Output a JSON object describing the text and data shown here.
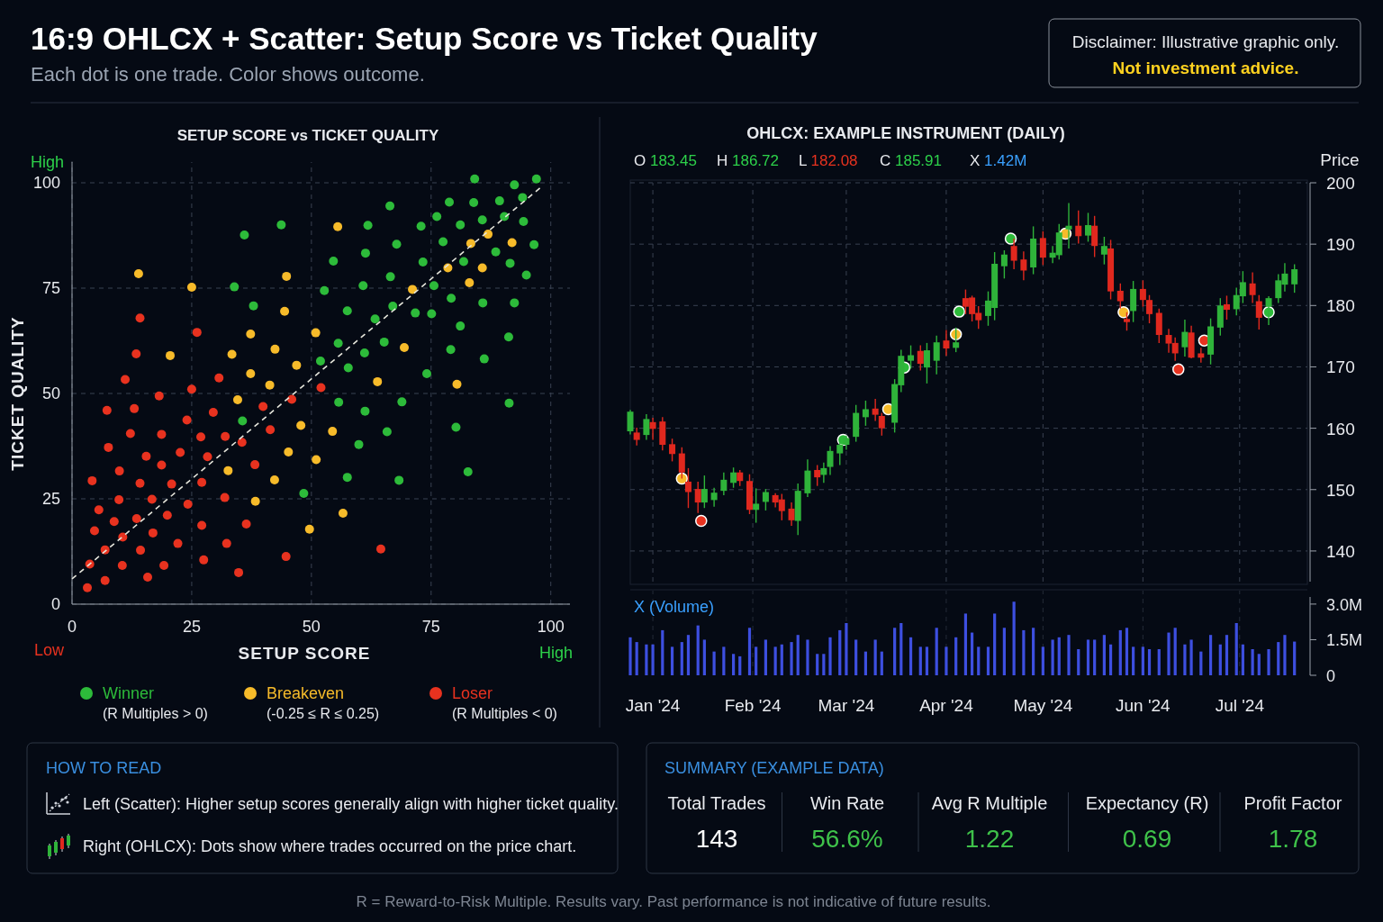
{
  "chart_data": [
    {
      "type": "other",
      "title": "16:9 OHLCX + Scatter: Setup Score vs Ticket Quality",
      "subtitle": "Each dot is one trade. Color shows outcome.",
      "annotations": [
        "Disclaimer: Illustrative graphic only.",
        "Not investment advice.",
        "R = Reward-to-Risk Multiple. Results vary. Past performance is not indicative of future results."
      ]
    },
    {
      "type": "scatter",
      "title": "SETUP SCORE vs TICKET QUALITY",
      "xlabel": "SETUP SCORE",
      "ylabel": "TICKET QUALITY",
      "xlim": [
        0,
        104
      ],
      "ylim": [
        0,
        105
      ],
      "xticks": [
        0,
        25,
        50,
        75,
        100
      ],
      "yticks": [
        0,
        25,
        50,
        75,
        100
      ],
      "grid": true,
      "legend": "bottom",
      "marker": "circle",
      "line_style": "dashed",
      "annotations": [
        "High",
        "Low",
        "High",
        "(R Multiples > 0)",
        "(-0.25 ≤ R ≤ 0.25)",
        "(R Multiples < 0)"
      ],
      "series": [
        {
          "name": "Winner",
          "color": "#2dbb3a",
          "x": [
            84.1,
            92.4,
            97.0,
            66.4,
            78.8,
            83.9,
            89.3,
            94.1,
            90.3,
            85.7,
            94.3,
            81.1,
            76.2,
            72.9,
            43.7,
            61.8,
            36.0,
            67.8,
            77.5,
            88.5,
            96.5,
            61.3,
            54.6,
            73.3,
            81.8,
            91.5,
            66.5,
            94.9,
            33.9,
            52.7,
            60.8,
            75.6,
            79.2,
            85.8,
            92.4,
            37.9,
            57.5,
            67.0,
            71.7,
            75.1,
            63.3,
            81.1,
            91.2,
            55.6,
            65.2,
            61.1,
            79.1,
            86.1,
            51.9,
            57.7,
            74.1,
            55.7,
            68.9,
            91.3,
            61.2,
            35.6,
            80.2,
            65.8,
            59.9,
            82.7,
            57.5,
            68.3,
            48.4
          ],
          "values": [
            100.9,
            99.5,
            100.9,
            94.5,
            95.4,
            95.3,
            95.7,
            96.5,
            92.0,
            91.2,
            90.8,
            90.0,
            92.0,
            89.7,
            90.0,
            89.9,
            87.6,
            85.4,
            86.0,
            83.6,
            85.3,
            83.3,
            81.4,
            81.2,
            81.3,
            80.9,
            77.7,
            78.1,
            75.3,
            74.4,
            75.6,
            75.6,
            72.6,
            71.5,
            71.5,
            70.8,
            69.6,
            70.7,
            69.1,
            68.9,
            67.7,
            66.0,
            63.4,
            61.9,
            62.2,
            59.6,
            60.4,
            58.2,
            57.7,
            56.1,
            54.7,
            47.9,
            48.0,
            47.7,
            45.8,
            43.5,
            42.0,
            40.9,
            37.9,
            31.4,
            30.1,
            29.4,
            26.3
          ]
        },
        {
          "name": "Breakeven",
          "color": "#f7bb2a",
          "x": [
            55.5,
            13.9,
            44.8,
            25.0,
            86.9,
            83.3,
            91.9,
            78.5,
            85.7,
            71.1,
            83.0,
            44.4,
            37.3,
            50.9,
            20.5,
            33.4,
            42.4,
            69.4,
            46.9,
            37.3,
            41.3,
            63.8,
            80.4,
            34.6,
            47.8,
            54.4,
            45.2,
            51.0,
            32.6,
            42.3,
            38.3,
            56.6,
            49.6
          ],
          "values": [
            89.6,
            78.4,
            77.8,
            75.2,
            87.8,
            85.6,
            85.8,
            79.8,
            79.8,
            74.7,
            76.3,
            69.5,
            64.1,
            64.4,
            59.0,
            59.3,
            60.5,
            60.9,
            56.7,
            54.7,
            52.0,
            52.8,
            52.2,
            48.5,
            42.4,
            41.0,
            36.1,
            34.3,
            31.7,
            29.5,
            24.4,
            21.6,
            17.8
          ]
        },
        {
          "name": "Loser",
          "color": "#e8321f",
          "x": [
            14.2,
            26.1,
            13.4,
            11.1,
            30.7,
            25.0,
            18.2,
            7.3,
            13.0,
            52.0,
            39.9,
            45.9,
            29.5,
            24.0,
            12.2,
            18.7,
            26.9,
            32.0,
            41.4,
            35.5,
            7.6,
            15.5,
            22.6,
            28.3,
            18.7,
            38.2,
            9.9,
            4.2,
            14.2,
            20.8,
            27.1,
            9.8,
            16.7,
            24.2,
            31.9,
            5.6,
            8.8,
            13.5,
            19.9,
            4.7,
            10.6,
            16.9,
            27.1,
            36.4,
            22.1,
            6.9,
            14.3,
            32.3,
            3.7,
            10.5,
            19.2,
            27.5,
            44.7,
            64.5,
            6.9,
            15.8,
            34.8,
            3.2
          ],
          "values": [
            67.9,
            64.5,
            59.4,
            53.3,
            53.7,
            51.0,
            49.4,
            46.0,
            46.4,
            51.4,
            46.9,
            48.6,
            45.5,
            43.7,
            40.5,
            40.3,
            39.7,
            39.8,
            41.4,
            38.4,
            37.2,
            35.1,
            36.0,
            35.0,
            33.0,
            33.1,
            31.6,
            29.3,
            28.7,
            28.5,
            28.9,
            24.8,
            24.9,
            23.7,
            25.3,
            22.4,
            19.6,
            20.3,
            21.1,
            17.4,
            15.9,
            16.9,
            18.7,
            19.0,
            14.4,
            12.9,
            12.8,
            14.4,
            9.5,
            9.2,
            9.2,
            10.5,
            11.3,
            13.1,
            5.6,
            6.4,
            7.5,
            3.9
          ]
        },
        {
          "type": "line",
          "color": "#e6e6dc",
          "marker": "none",
          "x": [
            0,
            98
          ],
          "values": [
            6,
            99
          ]
        }
      ]
    },
    {
      "type": "candlestick",
      "title": "OHLCX: EXAMPLE INSTRUMENT (DAILY)",
      "ylabel": "Price",
      "annotations": [
        "O 183.45",
        "H 186.72",
        "L 182.08",
        "C 185.91",
        "X 1.42M"
      ],
      "xlim": [
        "2023-12-25",
        "2024-07-22"
      ],
      "xticks": [
        {
          "value": "2024-01-01",
          "label": null
        },
        {
          "value": "2024-02-01",
          "label": null
        },
        {
          "value": "2024-03-01",
          "label": null
        },
        {
          "value": "2024-04-01",
          "label": null
        },
        {
          "value": "2024-05-01",
          "label": null
        },
        {
          "value": "2024-06-01",
          "label": null
        },
        {
          "value": "2024-07-01",
          "label": null
        }
      ],
      "ylim": [
        135,
        200
      ],
      "yticks": [
        140,
        150,
        160,
        170,
        180,
        190,
        200
      ],
      "tick_labels": "y",
      "grid": true,
      "marker": "circle",
      "x": [
        "2023-12-25",
        "2023-12-27",
        "2023-12-30",
        "2024-01-01",
        "2024-01-04",
        "2024-01-07",
        "2024-01-10",
        "2024-01-12",
        "2024-01-15",
        "2024-01-17",
        "2024-01-20",
        "2024-01-23",
        "2024-01-26",
        "2024-01-28",
        "2024-01-31",
        "2024-02-02",
        "2024-02-05",
        "2024-02-08",
        "2024-02-10",
        "2024-02-13",
        "2024-02-15",
        "2024-02-18",
        "2024-02-21",
        "2024-02-23",
        "2024-02-25",
        "2024-02-28",
        "2024-03-01",
        "2024-03-04",
        "2024-03-07",
        "2024-03-10",
        "2024-03-12",
        "2024-03-16",
        "2024-03-18",
        "2024-03-21",
        "2024-03-24",
        "2024-03-26",
        "2024-03-29",
        "2024-04-01",
        "2024-04-04",
        "2024-04-07",
        "2024-04-09",
        "2024-04-11",
        "2024-04-14",
        "2024-04-16",
        "2024-04-19",
        "2024-04-22",
        "2024-04-25",
        "2024-04-28",
        "2024-05-01",
        "2024-05-04",
        "2024-05-06",
        "2024-05-09",
        "2024-05-12",
        "2024-05-15",
        "2024-05-17",
        "2024-05-20",
        "2024-05-22",
        "2024-05-25",
        "2024-05-27",
        "2024-05-29",
        "2024-06-01",
        "2024-06-03",
        "2024-06-06",
        "2024-06-09",
        "2024-06-11",
        "2024-06-14",
        "2024-06-16",
        "2024-06-19",
        "2024-06-22",
        "2024-06-25",
        "2024-06-27",
        "2024-06-30",
        "2024-07-02",
        "2024-07-05",
        "2024-07-07",
        "2024-07-10",
        "2024-07-13",
        "2024-07-15",
        "2024-07-18"
      ],
      "ohlc": [
        [
          159.5,
          163.0,
          159.0,
          162.7
        ],
        [
          159.3,
          160.1,
          157.2,
          158.1
        ],
        [
          158.9,
          162.3,
          158.1,
          161.5
        ],
        [
          161.0,
          161.7,
          158.1,
          159.9
        ],
        [
          161.1,
          161.8,
          156.4,
          157.3
        ],
        [
          157.4,
          158.3,
          154.6,
          155.8
        ],
        [
          155.9,
          156.9,
          151.8,
          152.8
        ],
        [
          151.3,
          153.5,
          147.0,
          149.6
        ],
        [
          150.1,
          151.3,
          146.2,
          147.9
        ],
        [
          147.9,
          152.3,
          147.0,
          150.1
        ],
        [
          148.3,
          150.3,
          147.2,
          149.5
        ],
        [
          149.8,
          152.8,
          149.1,
          151.6
        ],
        [
          151.1,
          153.6,
          150.3,
          152.8
        ],
        [
          152.8,
          153.2,
          150.6,
          151.4
        ],
        [
          151.4,
          152.5,
          146.0,
          146.7
        ],
        [
          146.7,
          150.2,
          144.6,
          147.7
        ],
        [
          148.0,
          150.1,
          146.6,
          149.6
        ],
        [
          149.1,
          149.4,
          147.1,
          147.9
        ],
        [
          148.4,
          149.3,
          145.0,
          146.5
        ],
        [
          146.9,
          147.9,
          144.1,
          145.0
        ],
        [
          144.9,
          151.0,
          142.6,
          149.8
        ],
        [
          149.4,
          154.9,
          148.8,
          153.1
        ],
        [
          153.2,
          154.0,
          150.6,
          152.0
        ],
        [
          152.4,
          154.4,
          151.1,
          153.5
        ],
        [
          153.7,
          157.1,
          152.4,
          156.3
        ],
        [
          155.9,
          158.2,
          154.0,
          157.3
        ],
        [
          157.3,
          158.8,
          156.5,
          158.4
        ],
        [
          158.6,
          163.8,
          157.8,
          162.5
        ],
        [
          161.8,
          164.5,
          160.4,
          163.1
        ],
        [
          163.2,
          164.8,
          161.2,
          162.2
        ],
        [
          162.0,
          162.5,
          158.8,
          160.0
        ],
        [
          160.9,
          168.0,
          159.3,
          167.2
        ],
        [
          167.0,
          172.8,
          165.9,
          171.8
        ],
        [
          171.0,
          173.5,
          169.7,
          171.9
        ],
        [
          172.6,
          173.5,
          169.4,
          170.5
        ],
        [
          169.9,
          173.9,
          167.3,
          172.7
        ],
        [
          171.0,
          175.1,
          168.8,
          174.0
        ],
        [
          174.3,
          176.0,
          171.8,
          173.0
        ],
        [
          173.1,
          176.4,
          172.4,
          174.0
        ],
        [
          181.2,
          182.6,
          178.6,
          179.8
        ],
        [
          181.3,
          181.6,
          177.4,
          178.6
        ],
        [
          178.8,
          179.9,
          176.2,
          177.6
        ],
        [
          178.3,
          182.3,
          176.7,
          180.8
        ],
        [
          179.6,
          188.7,
          177.6,
          186.8
        ],
        [
          186.4,
          189.0,
          184.4,
          188.3
        ],
        [
          189.7,
          190.9,
          185.9,
          187.3
        ],
        [
          187.5,
          188.8,
          184.1,
          185.7
        ],
        [
          186.2,
          192.9,
          185.1,
          190.9
        ],
        [
          191.0,
          192.1,
          186.6,
          187.8
        ],
        [
          187.8,
          189.7,
          186.9,
          188.6
        ],
        [
          188.2,
          193.3,
          187.5,
          191.9
        ],
        [
          192.4,
          196.7,
          189.3,
          193.0
        ],
        [
          193.0,
          195.5,
          190.1,
          191.3
        ],
        [
          191.4,
          195.1,
          190.4,
          193.1
        ],
        [
          193.0,
          194.6,
          187.9,
          189.7
        ],
        [
          188.3,
          191.2,
          186.7,
          189.7
        ],
        [
          189.3,
          190.7,
          181.0,
          182.3
        ],
        [
          182.4,
          183.6,
          179.5,
          180.7
        ],
        [
          177.8,
          178.9,
          175.9,
          177.3
        ],
        [
          179.1,
          184.0,
          177.3,
          182.7
        ],
        [
          182.7,
          184.1,
          179.8,
          180.9
        ],
        [
          180.9,
          181.7,
          177.1,
          178.6
        ],
        [
          178.8,
          179.5,
          173.9,
          175.2
        ],
        [
          175.2,
          176.2,
          172.3,
          173.8
        ],
        [
          173.9,
          174.8,
          171.0,
          172.2
        ],
        [
          173.2,
          177.7,
          171.7,
          175.7
        ],
        [
          175.6,
          176.7,
          171.4,
          171.5
        ],
        [
          172.2,
          173.1,
          170.7,
          171.5
        ],
        [
          172.0,
          177.9,
          170.4,
          176.6
        ],
        [
          176.4,
          181.2,
          175.1,
          180.0
        ],
        [
          180.2,
          181.6,
          177.7,
          179.3
        ],
        [
          179.4,
          182.9,
          178.4,
          181.7
        ],
        [
          181.5,
          185.6,
          180.4,
          183.8
        ],
        [
          183.6,
          185.4,
          180.4,
          181.7
        ],
        [
          180.7,
          181.7,
          176.1,
          178.0
        ],
        [
          179.8,
          181.5,
          176.8,
          181.2
        ],
        [
          181.2,
          185.1,
          180.4,
          184.1
        ],
        [
          183.4,
          186.9,
          182.3,
          185.2
        ],
        [
          183.45,
          186.72,
          182.08,
          185.91
        ]
      ],
      "series": [
        {
          "type": "scatter",
          "color": "#2dbb3a",
          "x": [
            "2024-02-29",
            "2024-03-19",
            "2024-04-05",
            "2024-04-21",
            "2024-07-10"
          ],
          "values": [
            158.1,
            169.9,
            179.0,
            190.9,
            178.9
          ]
        },
        {
          "type": "scatter",
          "color": "#f7bb2a",
          "x": [
            "2024-01-10",
            "2024-03-14",
            "2024-04-04",
            "2024-05-08",
            "2024-05-26"
          ],
          "values": [
            151.8,
            163.1,
            175.3,
            191.7,
            178.9
          ]
        },
        {
          "type": "scatter",
          "color": "#e8321f",
          "x": [
            "2024-01-16",
            "2024-06-12",
            "2024-06-20"
          ],
          "values": [
            144.9,
            169.6,
            174.3
          ]
        }
      ]
    },
    {
      "type": "bar",
      "title": "X (Volume)",
      "color": "#3d4fe0",
      "xlim": [
        "2023-12-25",
        "2024-07-22"
      ],
      "xticks": [
        {
          "value": "2024-01-01",
          "label": "Jan '24"
        },
        {
          "value": "2024-02-01",
          "label": "Feb '24"
        },
        {
          "value": "2024-03-01",
          "label": "Mar '24"
        },
        {
          "value": "2024-04-01",
          "label": "Apr '24"
        },
        {
          "value": "2024-05-01",
          "label": "May '24"
        },
        {
          "value": "2024-06-01",
          "label": "Jun '24"
        },
        {
          "value": "2024-07-01",
          "label": "Jul '24"
        }
      ],
      "ylim": [
        0,
        3300000
      ],
      "yticks": [
        0,
        {
          "value": 1500000,
          "label": "1.5M"
        },
        {
          "value": 3000000,
          "label": "3.0M"
        }
      ],
      "grid": "x",
      "x": [
        "2023-12-25",
        "2023-12-27",
        "2023-12-30",
        "2024-01-01",
        "2024-01-04",
        "2024-01-07",
        "2024-01-10",
        "2024-01-12",
        "2024-01-15",
        "2024-01-17",
        "2024-01-20",
        "2024-01-23",
        "2024-01-26",
        "2024-01-28",
        "2024-01-31",
        "2024-02-02",
        "2024-02-05",
        "2024-02-08",
        "2024-02-10",
        "2024-02-13",
        "2024-02-15",
        "2024-02-18",
        "2024-02-21",
        "2024-02-23",
        "2024-02-25",
        "2024-02-28",
        "2024-03-01",
        "2024-03-04",
        "2024-03-07",
        "2024-03-10",
        "2024-03-12",
        "2024-03-16",
        "2024-03-18",
        "2024-03-21",
        "2024-03-24",
        "2024-03-26",
        "2024-03-29",
        "2024-04-01",
        "2024-04-04",
        "2024-04-07",
        "2024-04-09",
        "2024-04-11",
        "2024-04-14",
        "2024-04-16",
        "2024-04-19",
        "2024-04-22",
        "2024-04-25",
        "2024-04-28",
        "2024-05-01",
        "2024-05-04",
        "2024-05-06",
        "2024-05-09",
        "2024-05-12",
        "2024-05-15",
        "2024-05-17",
        "2024-05-20",
        "2024-05-22",
        "2024-05-25",
        "2024-05-27",
        "2024-05-29",
        "2024-06-01",
        "2024-06-03",
        "2024-06-06",
        "2024-06-09",
        "2024-06-11",
        "2024-06-14",
        "2024-06-16",
        "2024-06-19",
        "2024-06-22",
        "2024-06-25",
        "2024-06-27",
        "2024-06-30",
        "2024-07-02",
        "2024-07-05",
        "2024-07-07",
        "2024-07-10",
        "2024-07-13",
        "2024-07-15",
        "2024-07-18"
      ],
      "values": [
        1600000,
        1400000,
        1300000,
        1300000,
        1900000,
        1200000,
        1400000,
        1700000,
        2100000,
        1500000,
        1000000,
        1200000,
        900000,
        800000,
        2000000,
        1200000,
        1500000,
        1200000,
        1300000,
        1400000,
        1700000,
        1500000,
        900000,
        900000,
        1600000,
        1900000,
        2200000,
        1500000,
        1000000,
        1500000,
        1000000,
        2000000,
        2200000,
        1600000,
        1200000,
        1200000,
        2000000,
        1200000,
        1600000,
        2600000,
        1800000,
        1200000,
        1200000,
        2600000,
        2000000,
        3100000,
        1900000,
        2000000,
        1200000,
        1500000,
        1600000,
        1700000,
        1100000,
        1500000,
        1500000,
        1700000,
        1300000,
        1900000,
        2000000,
        1200000,
        1200000,
        1100000,
        1100000,
        1800000,
        2000000,
        1300000,
        1500000,
        1000000,
        1700000,
        1300000,
        1700000,
        2200000,
        1300000,
        1100000,
        900000,
        1100000,
        1400000,
        1700000,
        1420000
      ]
    },
    {
      "type": "other",
      "title": "HOW TO READ",
      "annotations": [
        "Left (Scatter): Higher setup scores generally align with higher ticket quality.",
        "Right (OHLCX): Dots show where trades occurred on the price chart."
      ]
    },
    {
      "type": "other",
      "title": "SUMMARY (EXAMPLE DATA)",
      "categories": [
        "Total Trades",
        "Win Rate",
        "Avg R Multiple",
        "Expectancy (R)",
        "Profit Factor"
      ],
      "values": [
        143,
        56.6,
        1.22,
        0.69,
        1.78
      ],
      "value_labels": [
        "143",
        "56.6%",
        "1.22",
        "0.69",
        "1.78"
      ],
      "colors": [
        "#ffffff",
        "#3fc24a",
        "#3fc24a",
        "#3fc24a",
        "#3fc24a"
      ]
    }
  ]
}
